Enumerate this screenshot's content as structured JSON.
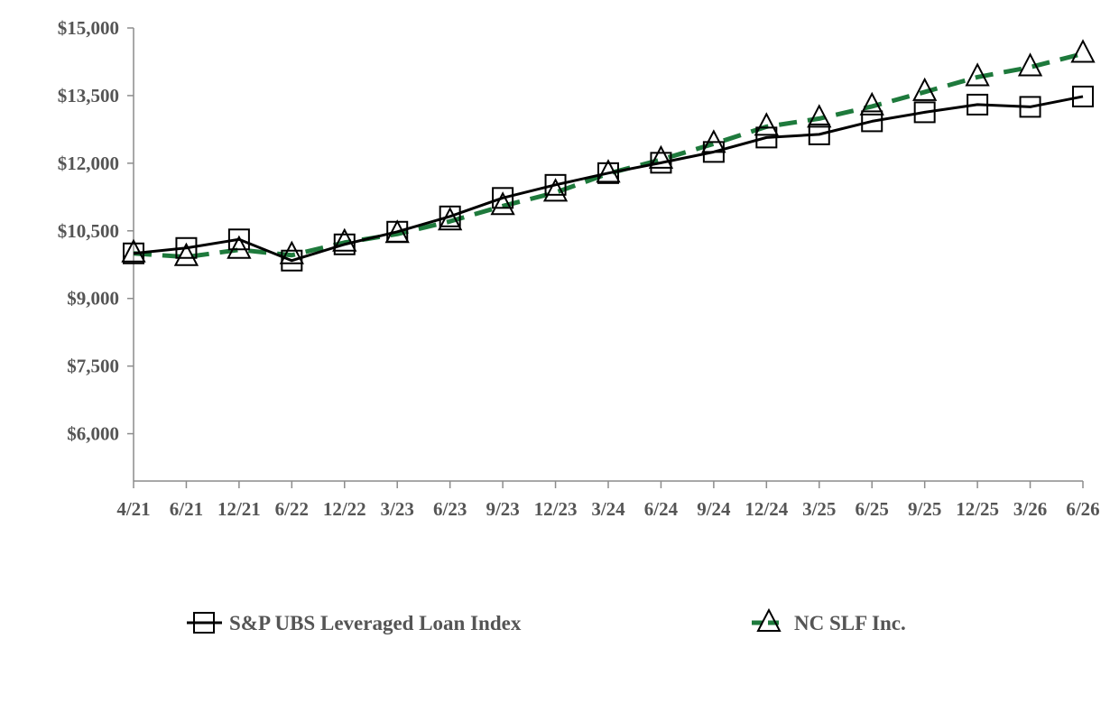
{
  "chart_data": {
    "type": "line",
    "title": "",
    "xlabel": "",
    "ylabel": "",
    "categories": [
      "4/21",
      "6/21",
      "12/21",
      "6/22",
      "12/22",
      "3/23",
      "6/23",
      "9/23",
      "12/23",
      "3/24",
      "6/24",
      "9/24",
      "12/24",
      "3/25",
      "6/25",
      "9/25",
      "12/25",
      "3/26",
      "6/26"
    ],
    "y_ticks": [
      6000,
      7500,
      9000,
      10500,
      12000,
      13500,
      15000
    ],
    "y_tick_labels": [
      "$6,000",
      "$7,500",
      "$9,000",
      "$10,500",
      "$12,000",
      "$13,500",
      "$15,000"
    ],
    "ylim": [
      4950,
      15000
    ],
    "grid": false,
    "legend_position": "bottom",
    "series": [
      {
        "name": "S&P UBS Leveraged Loan Index",
        "color": "#000000",
        "line_style": "solid",
        "marker": "square",
        "values": [
          10000,
          10120,
          10310,
          9840,
          10200,
          10480,
          10820,
          11230,
          11520,
          11780,
          12010,
          12250,
          12570,
          12640,
          12930,
          13130,
          13300,
          13250,
          13480
        ]
      },
      {
        "name": "NC SLF Inc.",
        "color": "#1e7a3c",
        "line_style": "dashed",
        "marker": "triangle",
        "values": [
          10000,
          9920,
          10080,
          9960,
          10240,
          10430,
          10710,
          11050,
          11350,
          11770,
          12080,
          12430,
          12810,
          12990,
          13260,
          13580,
          13910,
          14130,
          14430
        ]
      }
    ]
  }
}
